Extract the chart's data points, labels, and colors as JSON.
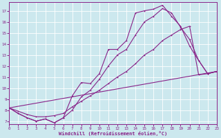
{
  "bg_color": "#cce8ee",
  "grid_color": "#ffffff",
  "line_color": "#882288",
  "xlim": [
    0,
    23
  ],
  "ylim": [
    6.7,
    17.8
  ],
  "xticks": [
    0,
    1,
    2,
    3,
    4,
    5,
    6,
    7,
    8,
    9,
    10,
    11,
    12,
    13,
    14,
    15,
    16,
    17,
    18,
    19,
    20,
    21,
    22,
    23
  ],
  "yticks": [
    7,
    8,
    9,
    10,
    11,
    12,
    13,
    14,
    15,
    16,
    17
  ],
  "xlabel": "Windchill (Refroidissement éolien,°C)",
  "series": [
    {
      "name": "line1_top",
      "x": [
        0,
        1,
        2,
        3,
        4,
        5,
        6,
        7,
        8,
        9,
        10,
        11,
        12,
        13,
        14,
        15,
        16,
        17,
        18,
        19,
        20,
        21,
        22,
        23
      ],
      "y": [
        8.2,
        7.7,
        7.3,
        7.0,
        7.2,
        6.85,
        7.3,
        9.3,
        10.5,
        10.4,
        11.3,
        13.5,
        13.5,
        14.3,
        16.8,
        17.0,
        17.15,
        17.5,
        16.5,
        15.6,
        13.8,
        12.5,
        11.3,
        11.5
      ],
      "has_markers": true
    },
    {
      "name": "line2_mid",
      "x": [
        0,
        1,
        2,
        3,
        4,
        5,
        6,
        7,
        8,
        9,
        10,
        11,
        12,
        13,
        14,
        15,
        16,
        17,
        18,
        19,
        20,
        21,
        22,
        23
      ],
      "y": [
        8.2,
        7.7,
        7.3,
        7.0,
        7.2,
        6.85,
        7.3,
        8.0,
        9.2,
        9.8,
        10.8,
        12.0,
        13.0,
        13.5,
        14.8,
        16.0,
        16.5,
        17.2,
        16.8,
        15.5,
        14.4,
        12.5,
        11.3,
        11.5
      ],
      "has_markers": true
    },
    {
      "name": "line3_smooth",
      "x": [
        0,
        1,
        2,
        3,
        4,
        5,
        6,
        7,
        8,
        9,
        10,
        11,
        12,
        13,
        14,
        15,
        16,
        17,
        18,
        19,
        20,
        21,
        22,
        23
      ],
      "y": [
        8.2,
        7.9,
        7.6,
        7.4,
        7.4,
        7.5,
        7.7,
        8.3,
        8.8,
        9.3,
        9.8,
        10.4,
        11.0,
        11.5,
        12.2,
        13.0,
        13.5,
        14.3,
        14.8,
        15.3,
        15.6,
        11.2,
        11.3,
        11.5
      ],
      "has_markers": true
    },
    {
      "name": "line4_diagonal",
      "x": [
        0,
        23
      ],
      "y": [
        8.2,
        11.5
      ],
      "has_markers": true
    }
  ]
}
